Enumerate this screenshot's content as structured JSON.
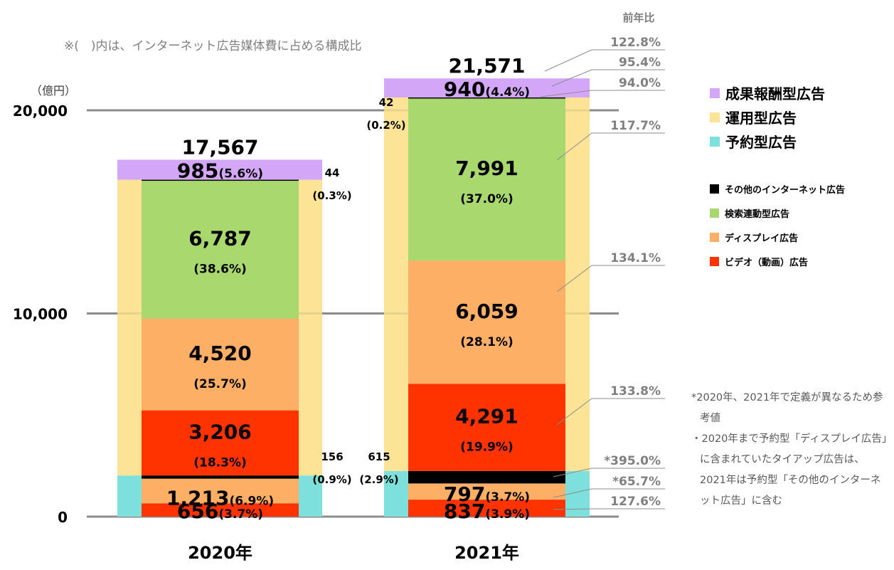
{
  "note": "※(　)内は、インターネット広告媒体費に占める構成比",
  "unit_label": "（億円）",
  "yoy_header": "前年比",
  "legend_major": [
    {
      "label": "成果報酬型広告",
      "color": "#D4A6F7"
    },
    {
      "label": "運用型広告",
      "color": "#FDE395"
    },
    {
      "label": "予約型広告",
      "color": "#7EE0DC"
    }
  ],
  "legend_minor": [
    {
      "label": "その他のインターネット広告",
      "color": "#000000"
    },
    {
      "label": "検索連動型広告",
      "color": "#A8D86E"
    },
    {
      "label": "ディスプレイ広告",
      "color": "#FDAF65"
    },
    {
      "label": "ビデオ（動画）広告",
      "color": "#FF3300"
    }
  ],
  "footnotes": [
    "*2020年、2021年で定義が異なるため参考値",
    "・2020年まで予約型「ディスプレイ広告」に含まれていたタイアップ広告は、2021年は予約型「その他のインターネット広告」に含む"
  ],
  "chart_data": {
    "type": "bar",
    "stacked": true,
    "title": "",
    "ylabel": "（億円）",
    "ylim": [
      0,
      20000
    ],
    "yticks": [
      0,
      10000,
      20000
    ],
    "ytick_labels": [
      "0",
      "10,000",
      "20,000"
    ],
    "grid": true,
    "categories": [
      "2020年",
      "2021年"
    ],
    "totals": [
      {
        "value": 17567,
        "label": "17,567"
      },
      {
        "value": 21571,
        "label": "21,571"
      }
    ],
    "bars": [
      {
        "category": "2020年",
        "outer": [
          {
            "name": "予約型広告",
            "value": 2025,
            "color": "#7EE0DC"
          },
          {
            "name": "運用型広告",
            "value": 14557,
            "color": "#FDE395"
          },
          {
            "name": "成果報酬型広告",
            "value": 985,
            "color": "#D4A6F7",
            "label": "985",
            "pct": "(5.6%)"
          }
        ],
        "inner": [
          {
            "name": "ビデオ（動画）広告",
            "group": "予約型広告",
            "value": 656,
            "color": "#FF3300",
            "label": "656",
            "pct": "(3.7%)"
          },
          {
            "name": "ディスプレイ広告",
            "group": "予約型広告",
            "value": 1213,
            "color": "#FDAF65",
            "label": "1,213",
            "pct": "(6.9%)"
          },
          {
            "name": "その他のインターネット広告",
            "group": "予約型広告",
            "value": 156,
            "color": "#000000",
            "label": "156",
            "pct": "(0.9%)"
          },
          {
            "name": "ビデオ（動画）広告",
            "group": "運用型広告",
            "value": 3206,
            "color": "#FF3300",
            "label": "3,206",
            "pct": "(18.3%)"
          },
          {
            "name": "ディスプレイ広告",
            "group": "運用型広告",
            "value": 4520,
            "color": "#FDAF65",
            "label": "4,520",
            "pct": "(25.7%)"
          },
          {
            "name": "検索連動型広告",
            "group": "運用型広告",
            "value": 6787,
            "color": "#A8D86E",
            "label": "6,787",
            "pct": "(38.6%)"
          },
          {
            "name": "その他のインターネット広告",
            "group": "運用型広告",
            "value": 44,
            "color": "#000000",
            "label": "44",
            "pct": "(0.3%)"
          }
        ]
      },
      {
        "category": "2021年",
        "outer": [
          {
            "name": "予約型広告",
            "value": 2249,
            "color": "#7EE0DC"
          },
          {
            "name": "運用型広告",
            "value": 18382,
            "color": "#FDE395"
          },
          {
            "name": "成果報酬型広告",
            "value": 940,
            "color": "#D4A6F7",
            "label": "940",
            "pct": "(4.4%)"
          }
        ],
        "inner": [
          {
            "name": "ビデオ（動画）広告",
            "group": "予約型広告",
            "value": 837,
            "color": "#FF3300",
            "label": "837",
            "pct": "(3.9%)",
            "yoy": "127.6%"
          },
          {
            "name": "ディスプレイ広告",
            "group": "予約型広告",
            "value": 797,
            "color": "#FDAF65",
            "label": "797",
            "pct": "(3.7%)",
            "yoy": "*65.7%"
          },
          {
            "name": "その他のインターネット広告",
            "group": "予約型広告",
            "value": 615,
            "color": "#000000",
            "label": "615",
            "pct": "(2.9%)",
            "yoy": "*395.0%"
          },
          {
            "name": "ビデオ（動画）広告",
            "group": "運用型広告",
            "value": 4291,
            "color": "#FF3300",
            "label": "4,291",
            "pct": "(19.9%)",
            "yoy": "133.8%"
          },
          {
            "name": "ディスプレイ広告",
            "group": "運用型広告",
            "value": 6059,
            "color": "#FDAF65",
            "label": "6,059",
            "pct": "(28.1%)",
            "yoy": "134.1%"
          },
          {
            "name": "検索連動型広告",
            "group": "運用型広告",
            "value": 7991,
            "color": "#A8D86E",
            "label": "7,991",
            "pct": "(37.0%)",
            "yoy": "117.7%"
          },
          {
            "name": "その他のインターネット広告",
            "group": "運用型広告",
            "value": 42,
            "color": "#000000",
            "label": "42",
            "pct": "(0.2%)",
            "yoy": "94.0%"
          }
        ]
      }
    ],
    "yoy_2021": [
      {
        "target": "合計",
        "value": "122.8%"
      },
      {
        "target": "成果報酬型広告",
        "value": "95.4%"
      },
      {
        "target": "運用型 その他のインターネット広告",
        "value": "94.0%"
      },
      {
        "target": "検索連動型広告",
        "value": "117.7%"
      },
      {
        "target": "運用型 ディスプレイ広告",
        "value": "134.1%"
      },
      {
        "target": "運用型 ビデオ（動画）広告",
        "value": "133.8%"
      },
      {
        "target": "予約型 その他のインターネット広告",
        "value": "*395.0%"
      },
      {
        "target": "予約型 ディスプレイ広告",
        "value": "*65.7%"
      },
      {
        "target": "予約型 ビデオ（動画）広告",
        "value": "127.6%"
      }
    ]
  }
}
